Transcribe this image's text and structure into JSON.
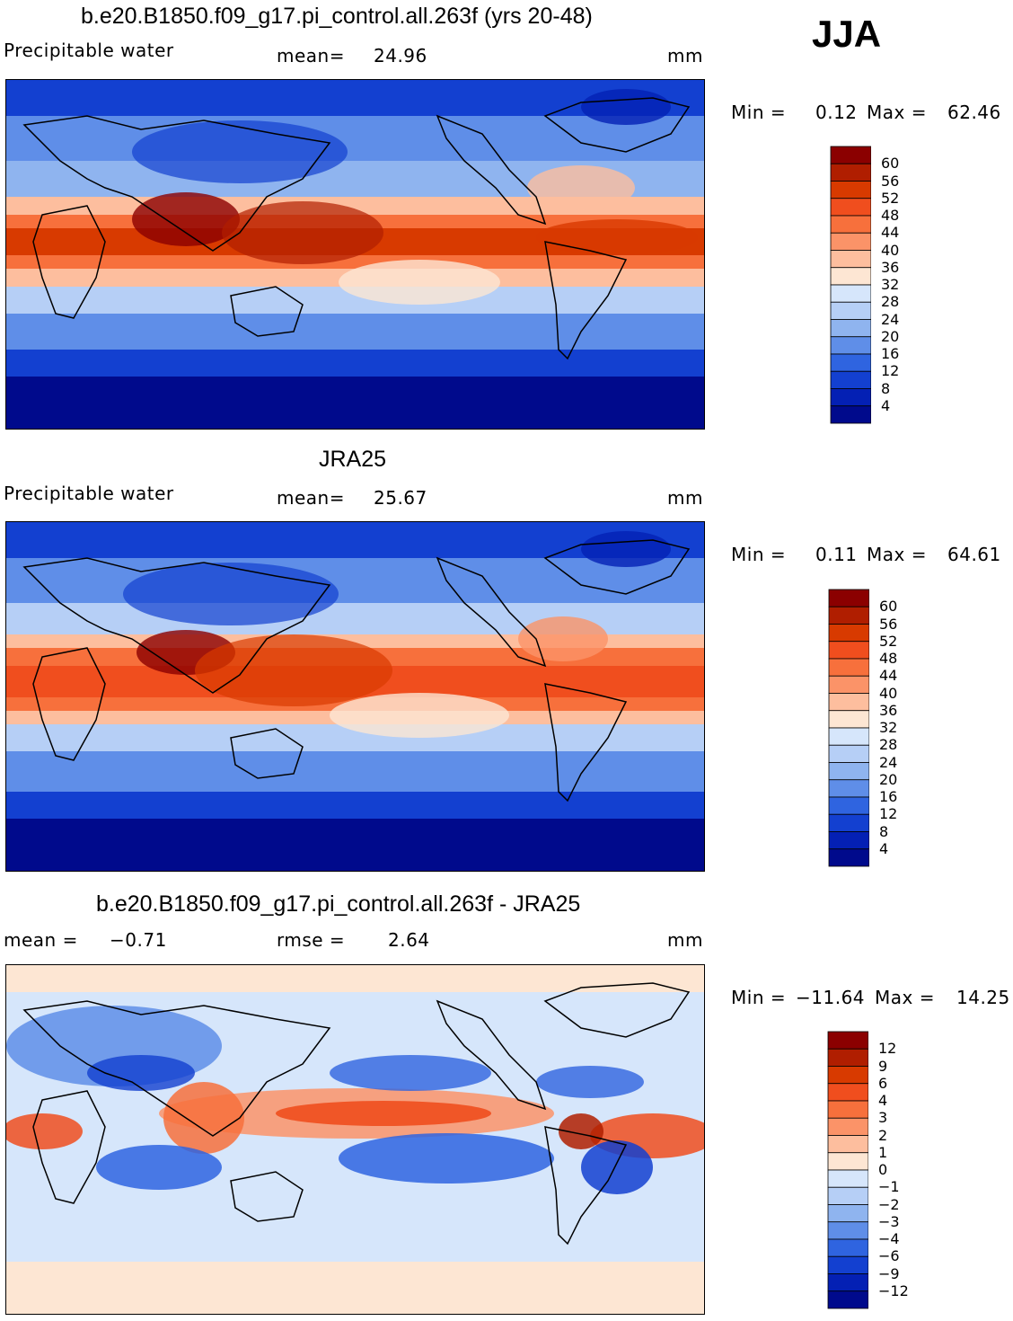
{
  "season": "JJA",
  "panels": [
    {
      "title": "b.e20.B1850.f09_g17.pi_control.all.263f (yrs 20-48)",
      "left_label": "Precipitable  water",
      "stat_label": "mean=",
      "stat_value": "24.96",
      "units": "mm",
      "min_label": "Min  =",
      "min_value": "0.12",
      "max_label": "Max  =",
      "max_value": "62.46",
      "colorbar": {
        "labels": [
          "60",
          "56",
          "52",
          "48",
          "44",
          "40",
          "36",
          "32",
          "28",
          "24",
          "20",
          "16",
          "12",
          "8",
          "4"
        ],
        "colors": [
          "#8b0000",
          "#b01e00",
          "#d83a00",
          "#f04e1e",
          "#f7703c",
          "#fb9368",
          "#fdbe9e",
          "#fde6d3",
          "#d6e6fb",
          "#b6cff6",
          "#8fb4ef",
          "#5f8ee8",
          "#2f64e0",
          "#1340d0",
          "#0420b4",
          "#000a8c"
        ]
      }
    },
    {
      "title": "JRA25",
      "left_label": "Precipitable  water",
      "stat_label": "mean=",
      "stat_value": "25.67",
      "units": "mm",
      "min_label": "Min  =",
      "min_value": "0.11",
      "max_label": "Max  =",
      "max_value": "64.61",
      "colorbar": {
        "labels": [
          "60",
          "56",
          "52",
          "48",
          "44",
          "40",
          "36",
          "32",
          "28",
          "24",
          "20",
          "16",
          "12",
          "8",
          "4"
        ],
        "colors": [
          "#8b0000",
          "#b01e00",
          "#d83a00",
          "#f04e1e",
          "#f7703c",
          "#fb9368",
          "#fdbe9e",
          "#fde6d3",
          "#d6e6fb",
          "#b6cff6",
          "#8fb4ef",
          "#5f8ee8",
          "#2f64e0",
          "#1340d0",
          "#0420b4",
          "#000a8c"
        ]
      }
    },
    {
      "title": "b.e20.B1850.f09_g17.pi_control.all.263f - JRA25",
      "left_label": "mean  =",
      "left_value": "−0.71",
      "stat_label": "rmse  =",
      "stat_value": "2.64",
      "units": "mm",
      "min_label": "Min  =",
      "min_value": "−11.64",
      "max_label": "Max  =",
      "max_value": "14.25",
      "colorbar": {
        "labels": [
          "12",
          "9",
          "6",
          "4",
          "3",
          "2",
          "1",
          "0",
          "−1",
          "−2",
          "−3",
          "−4",
          "−6",
          "−9",
          "−12"
        ],
        "colors": [
          "#8b0000",
          "#b01e00",
          "#d83a00",
          "#f04e1e",
          "#f7703c",
          "#fb9368",
          "#fdbe9e",
          "#fde6d3",
          "#d6e6fb",
          "#b6cff6",
          "#8fb4ef",
          "#5f8ee8",
          "#2f64e0",
          "#1340d0",
          "#0420b4",
          "#000a8c"
        ]
      }
    }
  ]
}
